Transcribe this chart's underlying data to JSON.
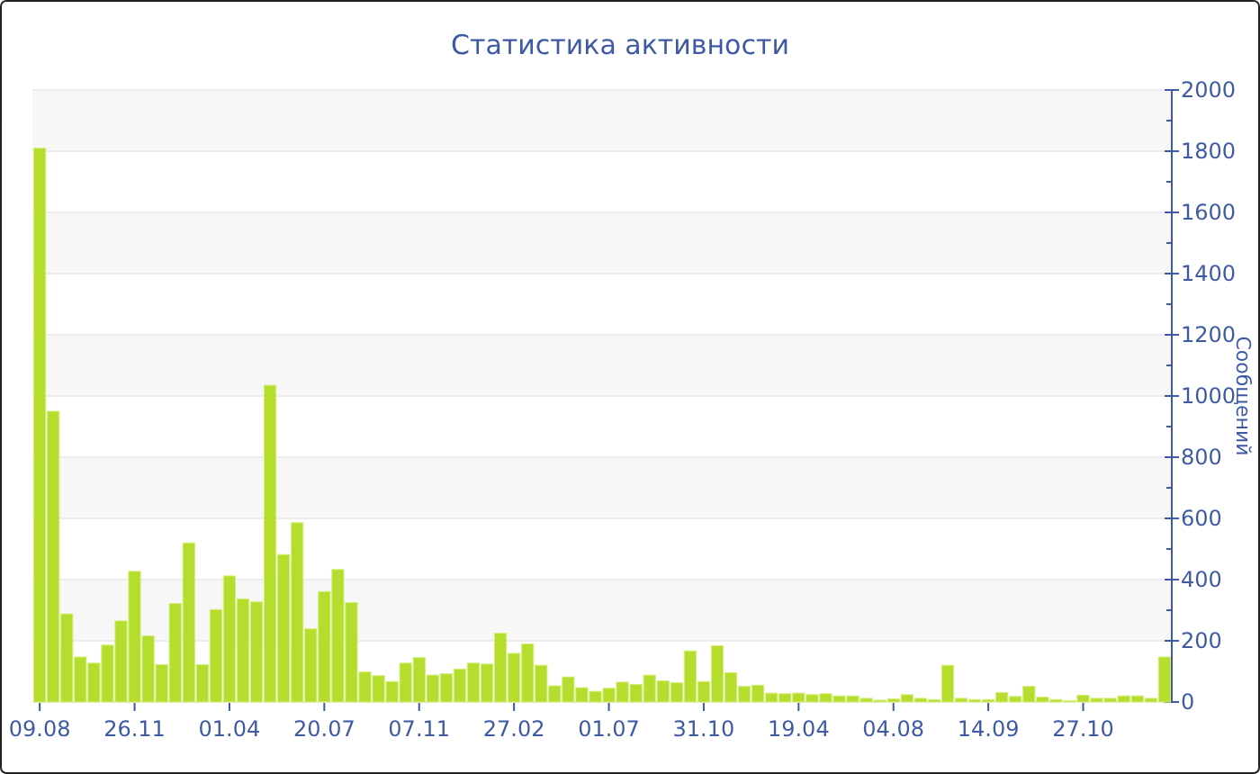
{
  "chart_data": {
    "type": "bar",
    "title": "Статистика активности",
    "ylabel": "Сообщений",
    "categories": [
      "09.08",
      null,
      null,
      null,
      null,
      null,
      null,
      "26.11",
      null,
      null,
      null,
      null,
      null,
      null,
      "01.04",
      null,
      null,
      null,
      null,
      null,
      null,
      "20.07",
      null,
      null,
      null,
      null,
      null,
      null,
      "07.11",
      null,
      null,
      null,
      null,
      null,
      null,
      "27.02",
      null,
      null,
      null,
      null,
      null,
      null,
      "01.07",
      null,
      null,
      null,
      null,
      null,
      null,
      "31.10",
      null,
      null,
      null,
      null,
      null,
      null,
      "19.04",
      null,
      null,
      null,
      null,
      null,
      null,
      "04.08",
      null,
      null,
      null,
      null,
      null,
      null,
      "14.09",
      null,
      null,
      null,
      null,
      null,
      null,
      "27.10",
      null,
      null,
      null,
      null,
      null,
      null
    ],
    "values": [
      1810,
      950,
      288,
      147,
      127,
      186,
      265,
      427,
      216,
      122,
      322,
      520,
      122,
      302,
      412,
      337,
      327,
      1035,
      482,
      586,
      239,
      361,
      433,
      325,
      98,
      86,
      67,
      127,
      145,
      88,
      92,
      108,
      127,
      124,
      225,
      159,
      190,
      120,
      53,
      82,
      47,
      35,
      45,
      65,
      57,
      88,
      69,
      63,
      167,
      67,
      184,
      96,
      51,
      55,
      29,
      27,
      29,
      24,
      27,
      20,
      20,
      12,
      6,
      10,
      24,
      12,
      8,
      120,
      12,
      8,
      8,
      31,
      18,
      51,
      16,
      8,
      4,
      22,
      12,
      12,
      20,
      20,
      12,
      147
    ],
    "color": "#b5dd2e",
    "ylim": [
      0,
      2000
    ],
    "yticks": [
      0,
      {
        "value": 100,
        "label": null
      },
      200,
      {
        "value": 300,
        "label": null
      },
      400,
      {
        "value": 500,
        "label": null
      },
      600,
      {
        "value": 700,
        "label": null
      },
      800,
      {
        "value": 900,
        "label": null
      },
      1000,
      {
        "value": 1100,
        "label": null
      },
      1200,
      {
        "value": 1300,
        "label": null
      },
      1400,
      {
        "value": 1500,
        "label": null
      },
      1600,
      {
        "value": 1700,
        "label": null
      },
      1800,
      {
        "value": 1900,
        "label": null
      },
      2000
    ],
    "grid": "y"
  }
}
